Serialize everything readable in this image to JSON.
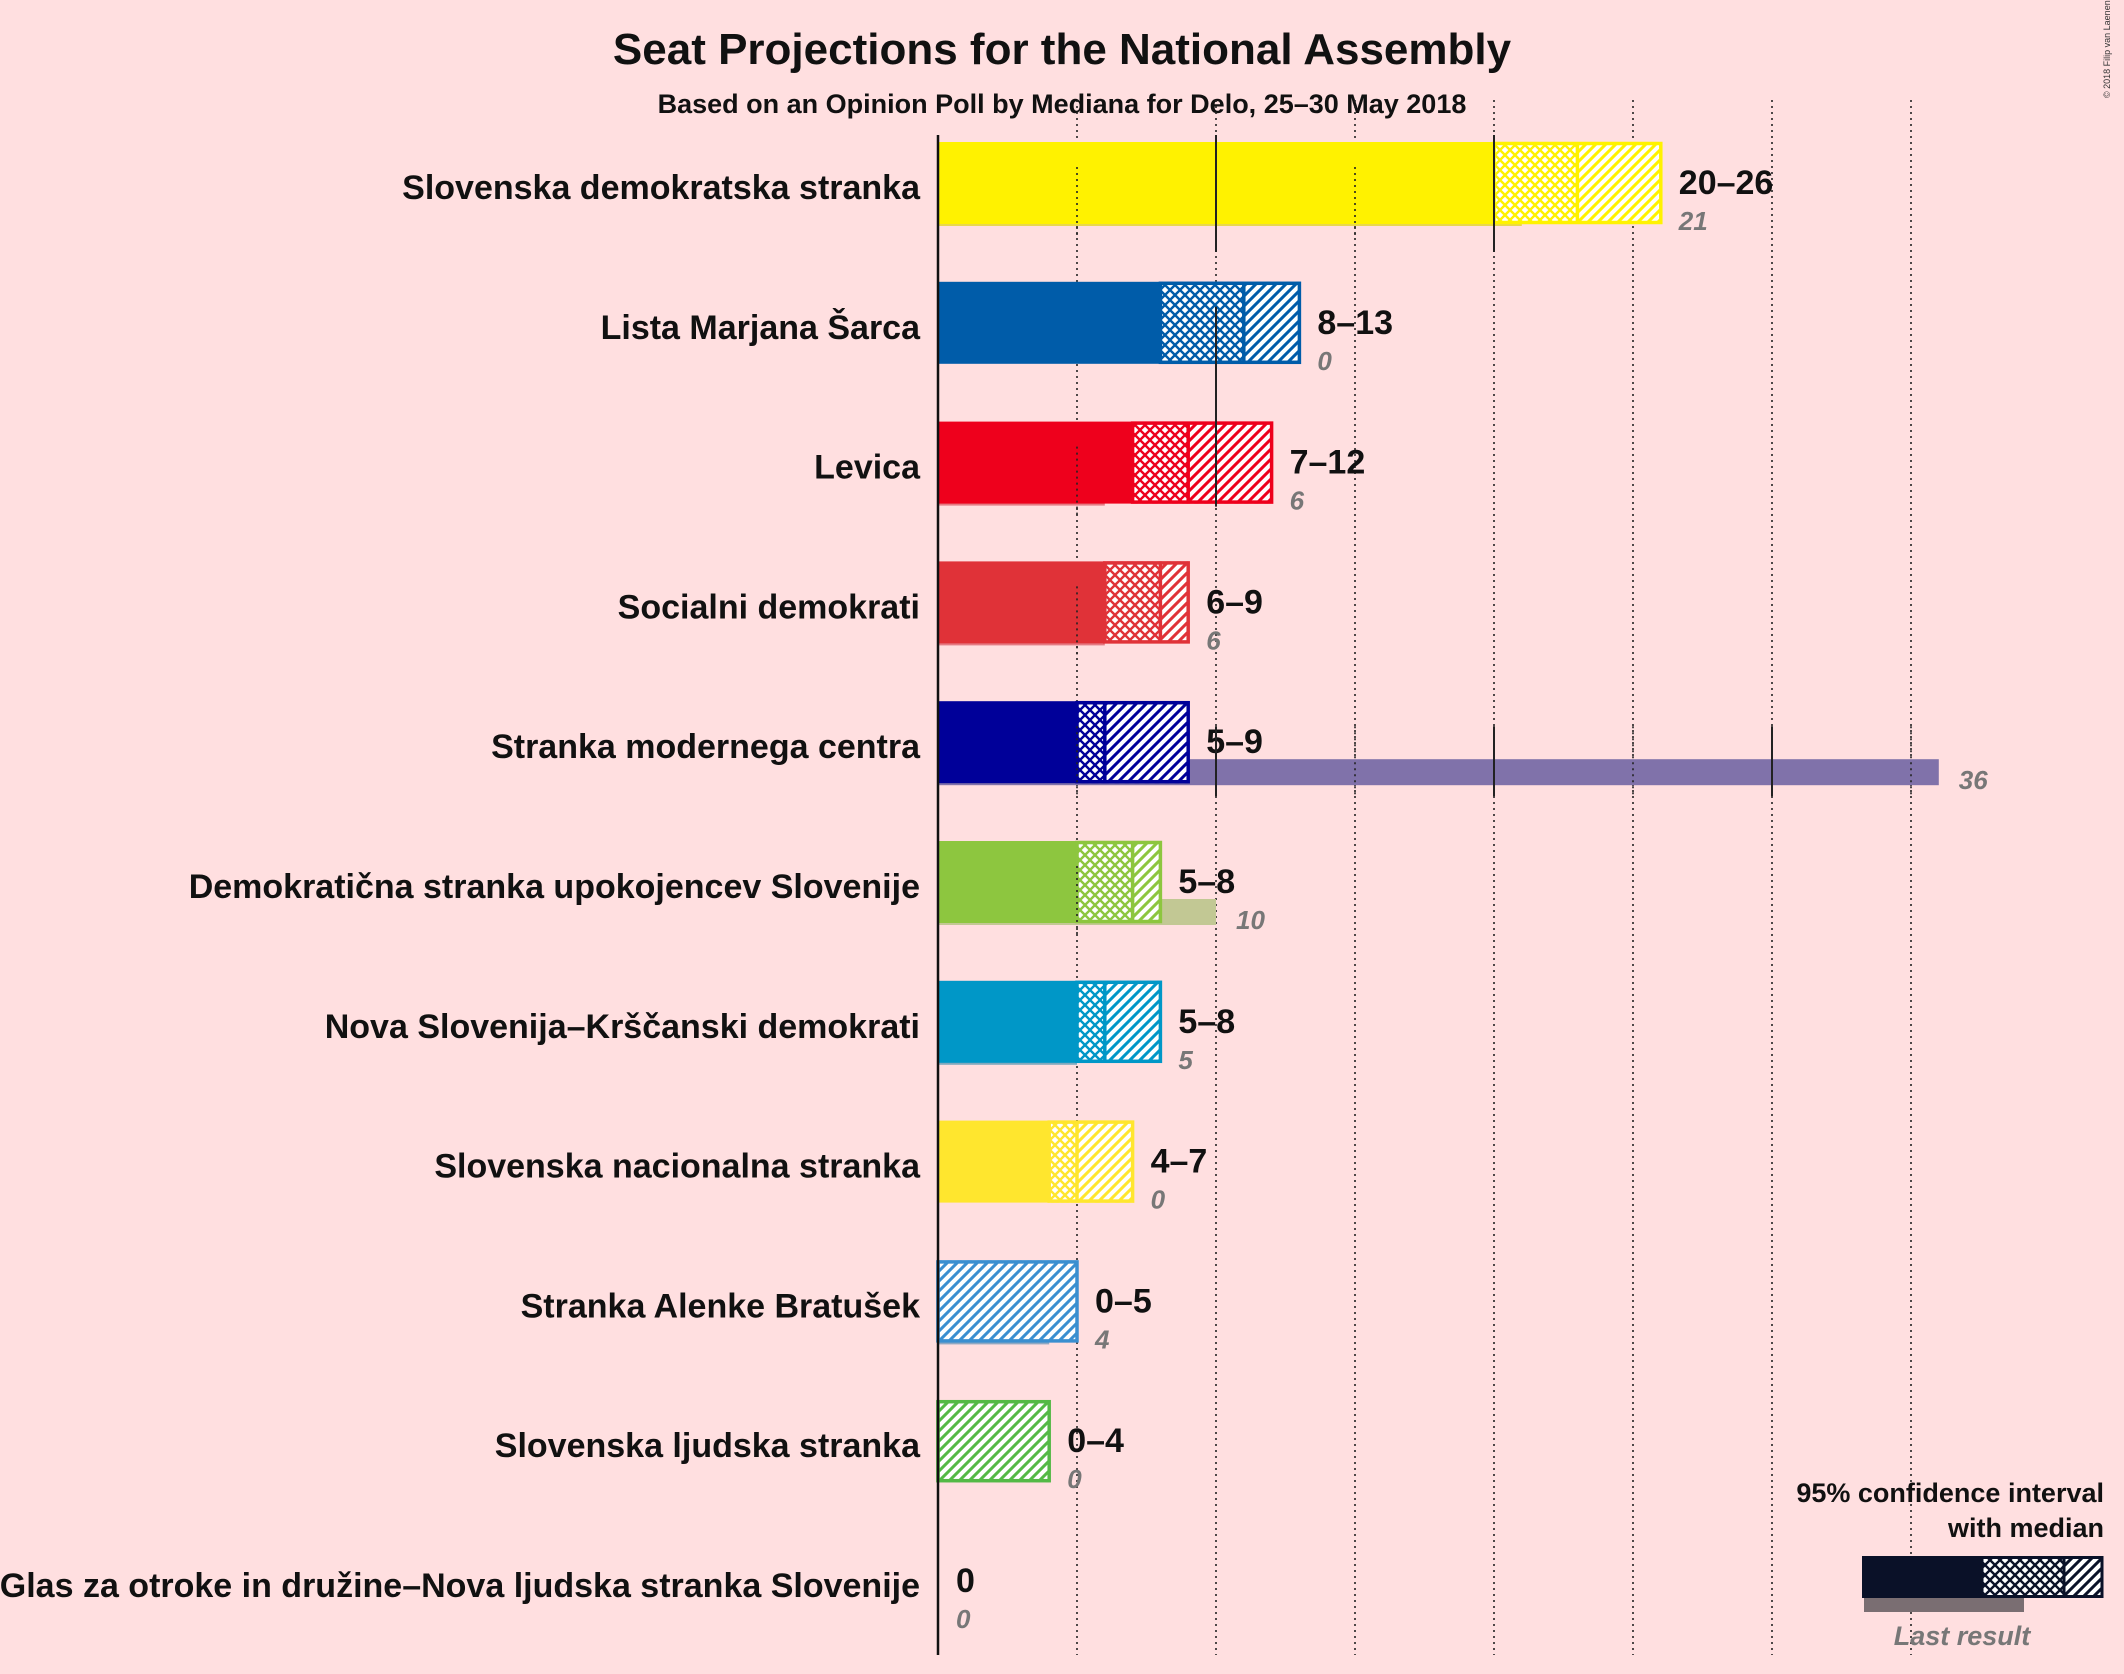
{
  "title": "Seat Projections for the National Assembly",
  "subtitle": "Based on an Opinion Poll by Mediana for Delo, 25–30 May 2018",
  "copyright": "© 2018 Filip van Laenen",
  "legend": {
    "line1": "95% confidence interval",
    "line2": "with median",
    "last_result": "Last result"
  },
  "chart_data": {
    "type": "bar",
    "x_axis": {
      "min": 0,
      "max": 42,
      "gridlines": [
        5,
        10,
        15,
        20,
        25,
        30,
        35
      ],
      "grid": true
    },
    "legend_placement": "bottom-right",
    "parties": [
      {
        "name": "Slovenska demokratska stranka",
        "low": 20,
        "median": 23,
        "high": 26,
        "range": "20–26",
        "last": 21,
        "last_label": "21",
        "color": "#FFF200",
        "last_color": "#E8D84C"
      },
      {
        "name": "Lista Marjana Šarca",
        "low": 8,
        "median": 11,
        "high": 13,
        "range": "8–13",
        "last": 0,
        "last_label": "0",
        "color": "#005CA9",
        "last_color": "#6F9BC3"
      },
      {
        "name": "Levica",
        "low": 7,
        "median": 9,
        "high": 12,
        "range": "7–12",
        "last": 6,
        "last_label": "6",
        "color": "#EE001C",
        "last_color": "#E57A83"
      },
      {
        "name": "Socialni demokrati",
        "low": 6,
        "median": 8,
        "high": 9,
        "range": "6–9",
        "last": 6,
        "last_label": "6",
        "color": "#E03238",
        "last_color": "#E57A83"
      },
      {
        "name": "Stranka modernega centra",
        "low": 5,
        "median": 6,
        "high": 9,
        "range": "5–9",
        "last": 36,
        "last_label": "36",
        "color": "#000099",
        "last_color": "#8072AA"
      },
      {
        "name": "Demokratična stranka upokojencev Slovenije",
        "low": 5,
        "median": 7,
        "high": 8,
        "range": "5–8",
        "last": 10,
        "last_label": "10",
        "color": "#8DC63F",
        "last_color": "#C2C894"
      },
      {
        "name": "Nova Slovenija–Krščanski demokrati",
        "low": 5,
        "median": 6,
        "high": 8,
        "range": "5–8",
        "last": 5,
        "last_label": "5",
        "color": "#0097C7",
        "last_color": "#80A9BE"
      },
      {
        "name": "Slovenska nacionalna stranka",
        "low": 4,
        "median": 5,
        "high": 7,
        "range": "4–7",
        "last": 0,
        "last_label": "0",
        "color": "#FFE62E",
        "last_color": "#E8D84C"
      },
      {
        "name": "Stranka Alenke Bratušek",
        "low": 0,
        "median": 0,
        "high": 5,
        "range": "0–5",
        "last": 4,
        "last_label": "4",
        "color": "#3A8FD0",
        "last_color": "#8FA8C2"
      },
      {
        "name": "Slovenska ljudska stranka",
        "low": 0,
        "median": 0,
        "high": 4,
        "range": "0–4",
        "last": 0,
        "last_label": "0",
        "color": "#54B946",
        "last_color": "#9CC48F"
      },
      {
        "name": "Glas za otroke in družine–Nova ljudska stranka Slovenije",
        "low": 0,
        "median": 0,
        "high": 0,
        "range": "0",
        "last": 0,
        "last_label": "0",
        "color": "#2E6E2E",
        "last_color": "#8E9E8E"
      }
    ]
  }
}
